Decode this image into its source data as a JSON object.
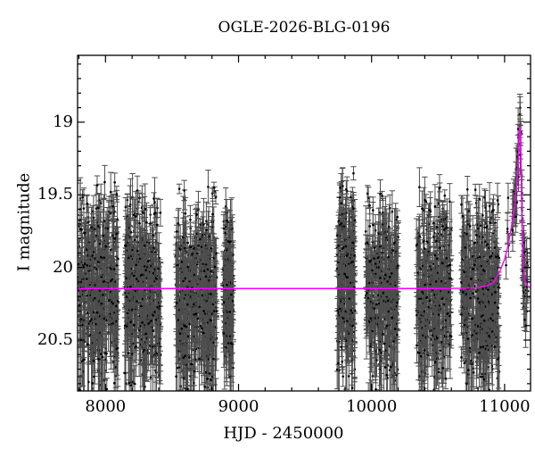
{
  "chart_data": {
    "type": "scatter",
    "title": "OGLE-2026-BLG-0196",
    "xlabel": "HJD - 2450000",
    "ylabel": "I magnitude",
    "xlim": [
      7790,
      11195
    ],
    "ylim": [
      18.54,
      20.85
    ],
    "y_axis_inverted": true,
    "x_ticks": [
      {
        "v": 8000,
        "label": "8000"
      },
      {
        "v": 9000,
        "label": "9000"
      },
      {
        "v": 10000,
        "label": "10000"
      },
      {
        "v": 11000,
        "label": "11000"
      }
    ],
    "y_ticks": [
      {
        "v": 19,
        "label": "19"
      },
      {
        "v": 19.5,
        "label": "19.5"
      },
      {
        "v": 20,
        "label": "20"
      },
      {
        "v": 20.5,
        "label": "20.5"
      }
    ],
    "x_minor_step": 200,
    "y_minor_step": 0.1,
    "baseline_mag": 20.145,
    "peak_mag": 19.03,
    "peak_t": 11115,
    "model_curve": [
      [
        7790,
        20.145
      ],
      [
        10500,
        20.145
      ],
      [
        10700,
        20.143
      ],
      [
        10800,
        20.138
      ],
      [
        10870,
        20.125
      ],
      [
        10920,
        20.1
      ],
      [
        10960,
        20.035
      ],
      [
        11000,
        19.945
      ],
      [
        11027,
        19.845
      ],
      [
        11055,
        19.7
      ],
      [
        11075,
        19.575
      ],
      [
        11090,
        19.445
      ],
      [
        11100,
        19.32
      ],
      [
        11108,
        19.15
      ],
      [
        11112,
        19.065
      ],
      [
        11115,
        19.03
      ],
      [
        11118,
        19.05
      ],
      [
        11121,
        19.12
      ],
      [
        11124,
        19.28
      ],
      [
        11127,
        19.48
      ],
      [
        11130,
        19.65
      ],
      [
        11134,
        19.8
      ],
      [
        11139,
        19.93
      ],
      [
        11145,
        20.03
      ],
      [
        11152,
        20.085
      ],
      [
        11162,
        20.115
      ],
      [
        11175,
        20.13
      ],
      [
        11195,
        20.14
      ]
    ],
    "clusters": [
      {
        "t0": 7800,
        "t1": 8095,
        "n": 420,
        "mean": 20.18,
        "sigma": 0.33,
        "min": 19.38,
        "max": 20.88
      },
      {
        "t0": 8145,
        "t1": 8415,
        "n": 400,
        "mean": 20.18,
        "sigma": 0.33,
        "min": 19.44,
        "max": 20.88
      },
      {
        "t0": 8527,
        "t1": 8836,
        "n": 440,
        "mean": 20.17,
        "sigma": 0.33,
        "min": 19.42,
        "max": 20.88
      },
      {
        "t0": 8885,
        "t1": 8963,
        "n": 140,
        "mean": 20.18,
        "sigma": 0.32,
        "min": 19.46,
        "max": 20.88
      },
      {
        "t0": 9740,
        "t1": 9875,
        "n": 260,
        "mean": 20.1,
        "sigma": 0.35,
        "min": 19.27,
        "max": 20.88
      },
      {
        "t0": 9955,
        "t1": 10200,
        "n": 330,
        "mean": 20.18,
        "sigma": 0.32,
        "min": 19.47,
        "max": 20.88
      },
      {
        "t0": 10337,
        "t1": 10600,
        "n": 330,
        "mean": 20.15,
        "sigma": 0.33,
        "min": 19.44,
        "max": 20.88
      },
      {
        "t0": 10672,
        "t1": 10960,
        "n": 400,
        "mean": 20.17,
        "sigma": 0.33,
        "min": 19.42,
        "max": 20.88
      },
      {
        "t0": 11005,
        "t1": 11175,
        "n": 85,
        "track": "model",
        "sigma": 0.13,
        "min": 18.86,
        "max": 20.55,
        "bias": 0.55
      }
    ],
    "colors": {
      "curve": "#ff00ff",
      "point": "#000000",
      "error_bar": "#4d4d4d",
      "frame": "#000000",
      "background": "#ffffff"
    },
    "seed": 20260196
  }
}
